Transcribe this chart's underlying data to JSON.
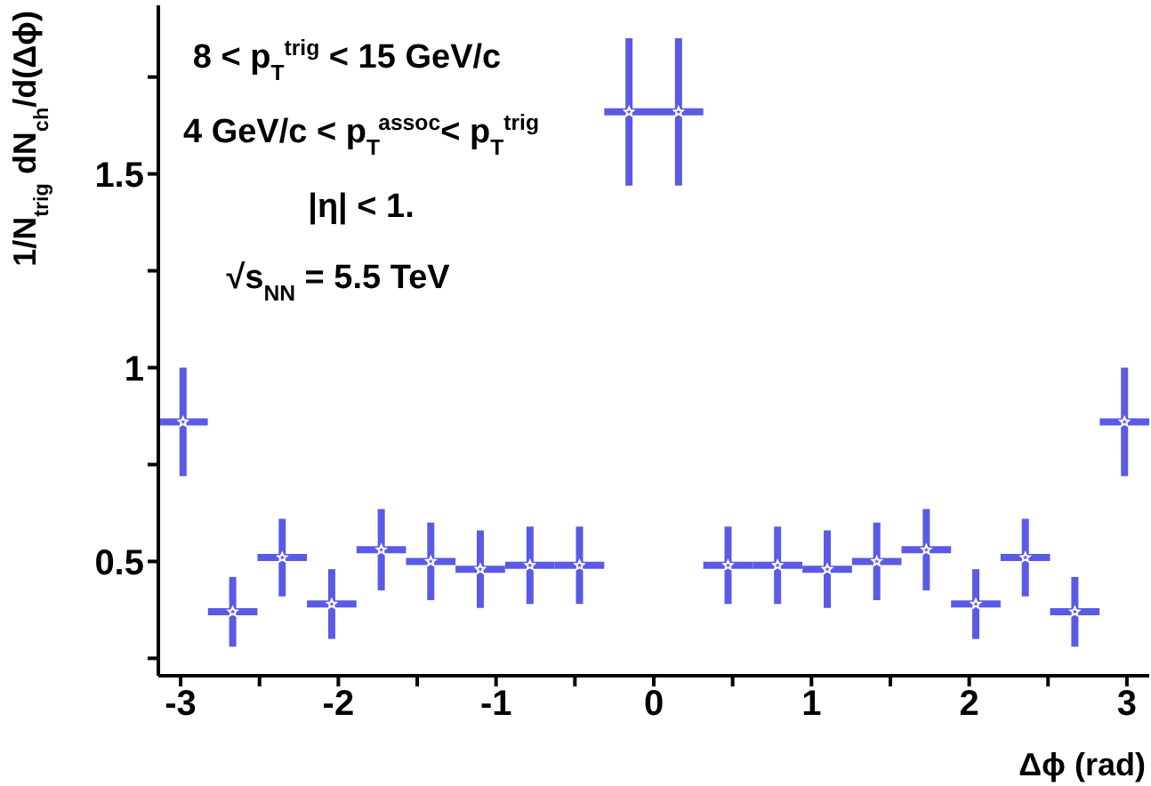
{
  "chart_data": {
    "type": "scatter",
    "xlabel": "Δϕ (rad)",
    "ylabel": "1/N$_{trig}$ dN$_{ch}$/d(Δϕ)",
    "annotations": [
      "8 < p$_{T}$$^{trig}$ < 15 GeV/c",
      "4 GeV/c < p$_{T}$$^{assoc}$< p$_{T}$$^{trig}$",
      "|η| < 1.",
      "√s$_{NN}$ = 5.5 TeV"
    ],
    "x": [
      -2.985,
      -2.67,
      -2.356,
      -2.042,
      -1.728,
      -1.414,
      -1.1,
      -0.785,
      -0.471,
      -0.157,
      0.157,
      0.471,
      0.785,
      1.1,
      1.414,
      1.728,
      2.042,
      2.356,
      2.67,
      2.985
    ],
    "series": [
      {
        "color": "#5a5ae6",
        "values": [
          0.86,
          0.37,
          0.51,
          0.39,
          0.53,
          0.5,
          0.48,
          0.49,
          0.49,
          1.66,
          1.66,
          0.49,
          0.49,
          0.48,
          0.5,
          0.53,
          0.39,
          0.51,
          0.37,
          0.86
        ],
        "errors": [
          0.14,
          0.09,
          0.1,
          0.09,
          0.105,
          0.1,
          0.1,
          0.1,
          0.1,
          0.19,
          0.19,
          0.1,
          0.1,
          0.1,
          0.1,
          0.105,
          0.09,
          0.1,
          0.09,
          0.14
        ],
        "xerrors": [
          0.157,
          0.157,
          0.157,
          0.157,
          0.157,
          0.157,
          0.157,
          0.157,
          0.157,
          0.157,
          0.157,
          0.157,
          0.157,
          0.157,
          0.157,
          0.157,
          0.157,
          0.157,
          0.157,
          0.157
        ]
      }
    ],
    "xlim": [
      -3.1416,
      3.1416
    ],
    "ylim": [
      0.205,
      1.935
    ],
    "xticks": [
      -3,
      {
        "value": -2.5,
        "label": null
      },
      -2,
      {
        "value": -1.5,
        "label": null
      },
      -1,
      {
        "value": -0.5,
        "label": null
      },
      0,
      {
        "value": 0.5,
        "label": null
      },
      1,
      {
        "value": 1.5,
        "label": null
      },
      2,
      {
        "value": 2.5,
        "label": null
      },
      3
    ],
    "yticks": [
      {
        "value": 0.25,
        "label": null
      },
      0.5,
      {
        "value": 0.75,
        "label": null
      },
      1,
      {
        "value": 1.25,
        "label": null
      },
      1.5,
      {
        "value": 1.75,
        "label": null
      }
    ],
    "marker": "star"
  }
}
